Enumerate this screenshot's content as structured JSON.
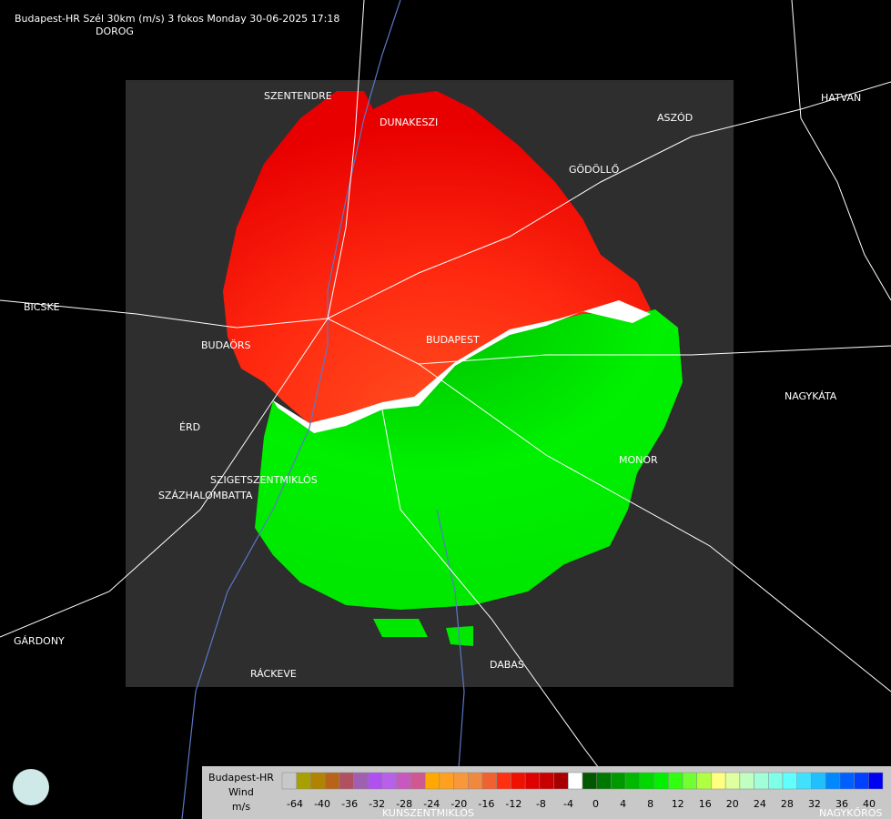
{
  "header": {
    "title": "Budapest-HR Szél 30km (m/s) 3 fokos Monday 30-06-2025 17:18"
  },
  "towns": [
    "DOROG",
    "SZENTENDRE",
    "DUNAKESZI",
    "HATVAN",
    "ASZÓD",
    "GÖDÖLLŐ",
    "BICSKE",
    "BUDAÖRS",
    "BUDAPEST",
    "NAGYKÁTA",
    "ÉRD",
    "MONOR",
    "SZIGETSZENTMIKLÓS",
    "SZÁZHALOMBATTA",
    "GÁRDONY",
    "RÁCKEVE",
    "DABAS",
    "KUNSZENTMIKLÓS",
    "NAGYKŐRÖS"
  ],
  "legend": {
    "station": "Budapest-HR",
    "quantity": "Wind",
    "unit": "m/s",
    "ticks": [
      -64,
      -40,
      -36,
      -32,
      -28,
      -24,
      -20,
      -16,
      -12,
      -8,
      -4,
      0,
      4,
      8,
      12,
      16,
      20,
      24,
      28,
      32,
      36,
      40
    ],
    "colors": [
      "#c8c8c8",
      "#a8a000",
      "#b08400",
      "#b86418",
      "#b05060",
      "#a060b0",
      "#b050f0",
      "#b860e8",
      "#c858c0",
      "#d05890",
      "#ffa800",
      "#ffa020",
      "#f89838",
      "#f08840",
      "#f06030",
      "#ff3010",
      "#f01000",
      "#e00000",
      "#c80000",
      "#a80000",
      "#ffffff",
      "#005800",
      "#007800",
      "#009800",
      "#00b800",
      "#00d800",
      "#00f000",
      "#30ff10",
      "#70ff30",
      "#b0ff40",
      "#ffff80",
      "#e0ffa0",
      "#c0ffc0",
      "#a0ffd8",
      "#80ffe8",
      "#60ffff",
      "#40e0ff",
      "#20c0ff",
      "#0088ff",
      "#0060ff",
      "#0040ff",
      "#0000f0"
    ]
  }
}
